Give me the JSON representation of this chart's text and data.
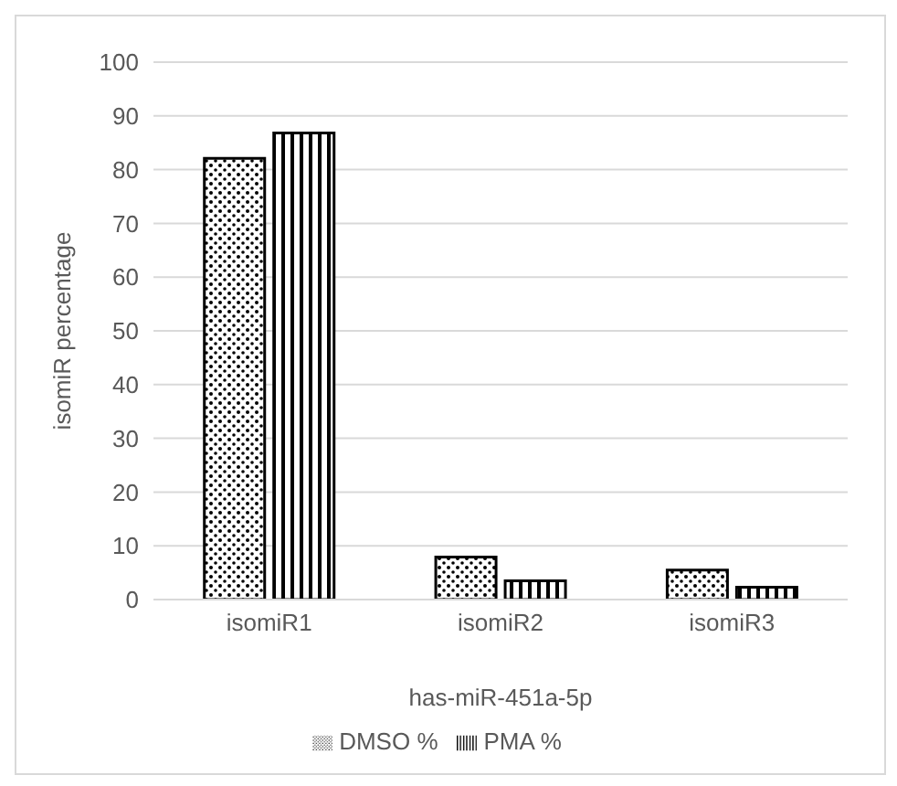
{
  "chart_data": {
    "type": "bar",
    "categories": [
      "isomiR1",
      "isomiR2",
      "isomiR3"
    ],
    "xlabel": "has-miR-451a-5p",
    "ylabel": "isomiR percentage",
    "ylim": [
      0,
      100
    ],
    "yticks": [
      0,
      10,
      20,
      30,
      40,
      50,
      60,
      70,
      80,
      90,
      100
    ],
    "grid": "y",
    "legend": "bottom",
    "series": [
      {
        "name": "DMSO %",
        "color": "#000000",
        "values": [
          82.1,
          7.9,
          5.5
        ]
      },
      {
        "name": "PMA %",
        "color": "#000000",
        "values": [
          86.8,
          3.5,
          2.3
        ]
      }
    ]
  }
}
